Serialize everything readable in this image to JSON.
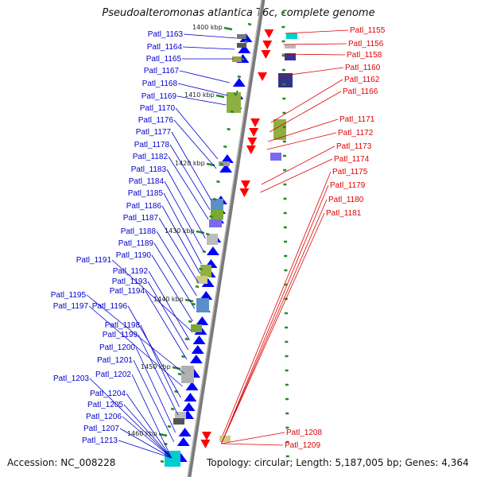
{
  "title": "Pseudoalteromonas atlantica T6c, complete genome",
  "accession": "Accession: NC_008228",
  "topology": "Topology: circular; Length: 5,187,005 bp; Genes: 4,364",
  "colors": {
    "forward_gene": "#0000ff",
    "reverse_gene": "#ff0000",
    "forward_label": "#0000cc",
    "reverse_label": "#dd0000",
    "backbone": "#888888",
    "tick": "#228b22"
  },
  "scale_labels": [
    "1400 kbp",
    "1410 kbp",
    "1420 kbp",
    "1430 kbp",
    "1440 kbp",
    "1450 kbp",
    "1460 kbp"
  ],
  "forward_genes": [
    "Patl_1163",
    "Patl_1164",
    "Patl_1165",
    "Patl_1167",
    "Patl_1168",
    "Patl_1169",
    "Patl_1170",
    "Patl_1176",
    "Patl_1177",
    "Patl_1178",
    "Patl_1182",
    "Patl_1183",
    "Patl_1184",
    "Patl_1185",
    "Patl_1186",
    "Patl_1187",
    "Patl_1188",
    "Patl_1189",
    "Patl_1190",
    "Patl_1191",
    "Patl_1192",
    "Patl_1193",
    "Patl_1194",
    "Patl_1195",
    "Patl_1197",
    "Patl_1196",
    "Patl_1198",
    "Patl_1199",
    "Patl_1200",
    "Patl_1201",
    "Patl_1202",
    "Patl_1203",
    "Patl_1204",
    "Patl_1205",
    "Patl_1206",
    "Patl_1207",
    "Patl_1213"
  ],
  "reverse_genes": [
    "Patl_1155",
    "Patl_1156",
    "Patl_1158",
    "Patl_1160",
    "Patl_1162",
    "Patl_1166",
    "Patl_1171",
    "Patl_1172",
    "Patl_1173",
    "Patl_1174",
    "Patl_1175",
    "Patl_1179",
    "Patl_1180",
    "Patl_1181",
    "Patl_1208",
    "Patl_1209"
  ]
}
